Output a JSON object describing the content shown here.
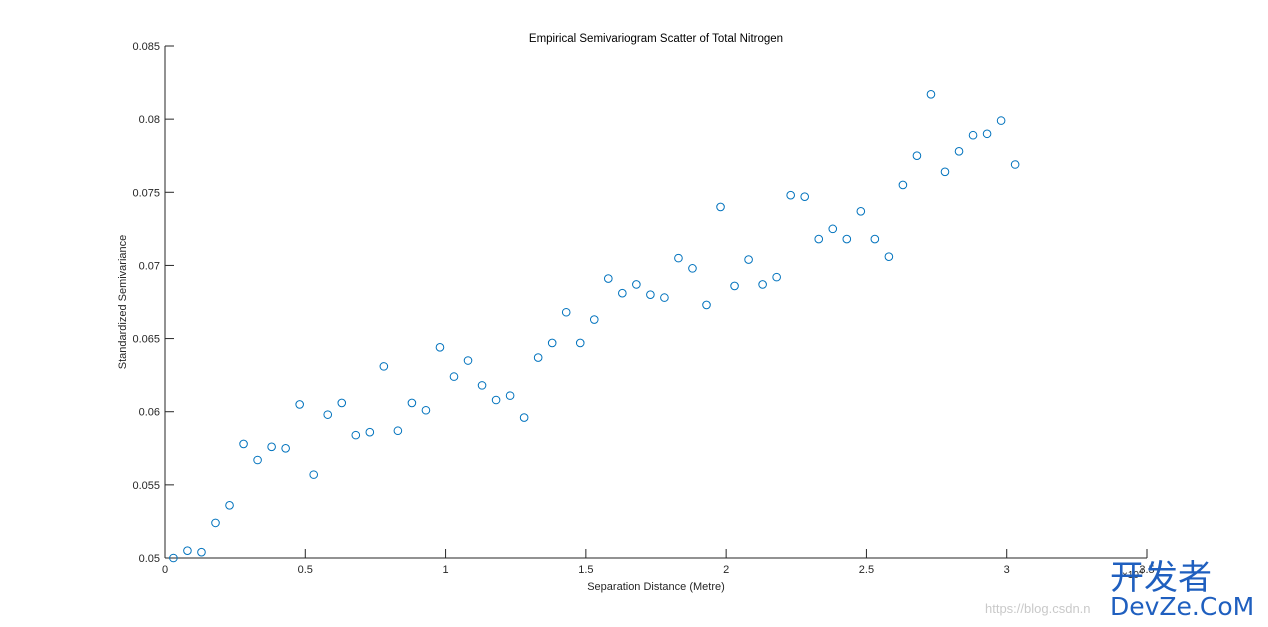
{
  "chart_data": {
    "type": "scatter",
    "title": "Empirical Semivariogram Scatter of Total Nitrogen",
    "xlabel": "Separation Distance (Metre)",
    "ylabel": "Standardized Semivariance",
    "x_exponent_label": "×10⁴",
    "x_exponent_power": "4",
    "xlim": [
      0,
      3.5
    ],
    "ylim": [
      0.05,
      0.085
    ],
    "x_ticks": [
      "0",
      "0.5",
      "1",
      "1.5",
      "2",
      "2.5",
      "3",
      "3.5"
    ],
    "y_ticks": [
      "0.05",
      "0.055",
      "0.06",
      "0.065",
      "0.07",
      "0.075",
      "0.08",
      "0.085"
    ],
    "grid": false,
    "marker": "open-circle",
    "marker_color": "#0072BD",
    "series": [
      {
        "x": [
          0.03,
          0.08,
          0.13,
          0.18,
          0.23,
          0.28,
          0.33,
          0.38,
          0.43,
          0.48,
          0.53,
          0.58,
          0.63,
          0.68,
          0.73,
          0.78,
          0.83,
          0.88,
          0.93,
          0.98,
          1.03,
          1.08,
          1.13,
          1.18,
          1.23,
          1.28,
          1.33,
          1.38,
          1.43,
          1.48,
          1.53,
          1.58,
          1.63,
          1.68,
          1.73,
          1.78,
          1.83,
          1.88,
          1.93,
          1.98,
          2.03,
          2.08,
          2.13,
          2.18,
          2.23,
          2.28,
          2.33,
          2.38,
          2.43,
          2.48,
          2.53,
          2.58,
          2.63,
          2.68,
          2.73,
          2.78,
          2.83,
          2.88,
          2.93,
          2.98,
          3.03
        ],
        "y": [
          0.05,
          0.0505,
          0.0504,
          0.0524,
          0.0536,
          0.0578,
          0.0567,
          0.0576,
          0.0575,
          0.0605,
          0.0557,
          0.0598,
          0.0606,
          0.0584,
          0.0586,
          0.0631,
          0.0587,
          0.0606,
          0.0601,
          0.0644,
          0.0624,
          0.0635,
          0.0618,
          0.0608,
          0.0611,
          0.0596,
          0.0637,
          0.0647,
          0.0668,
          0.0647,
          0.0663,
          0.0691,
          0.0681,
          0.0687,
          0.068,
          0.0678,
          0.0705,
          0.0698,
          0.0673,
          0.074,
          0.0686,
          0.0704,
          0.0687,
          0.0692,
          0.0748,
          0.0747,
          0.0718,
          0.0725,
          0.0718,
          0.0737,
          0.0718,
          0.0706,
          0.0755,
          0.0775,
          0.0817,
          0.0764,
          0.0778,
          0.0789,
          0.079,
          0.0799,
          0.0769
        ]
      }
    ]
  },
  "watermark": {
    "url_text": "https://blog.csdn.n",
    "brand_cn": "开发者",
    "brand_en": "DevZe.CoM"
  }
}
